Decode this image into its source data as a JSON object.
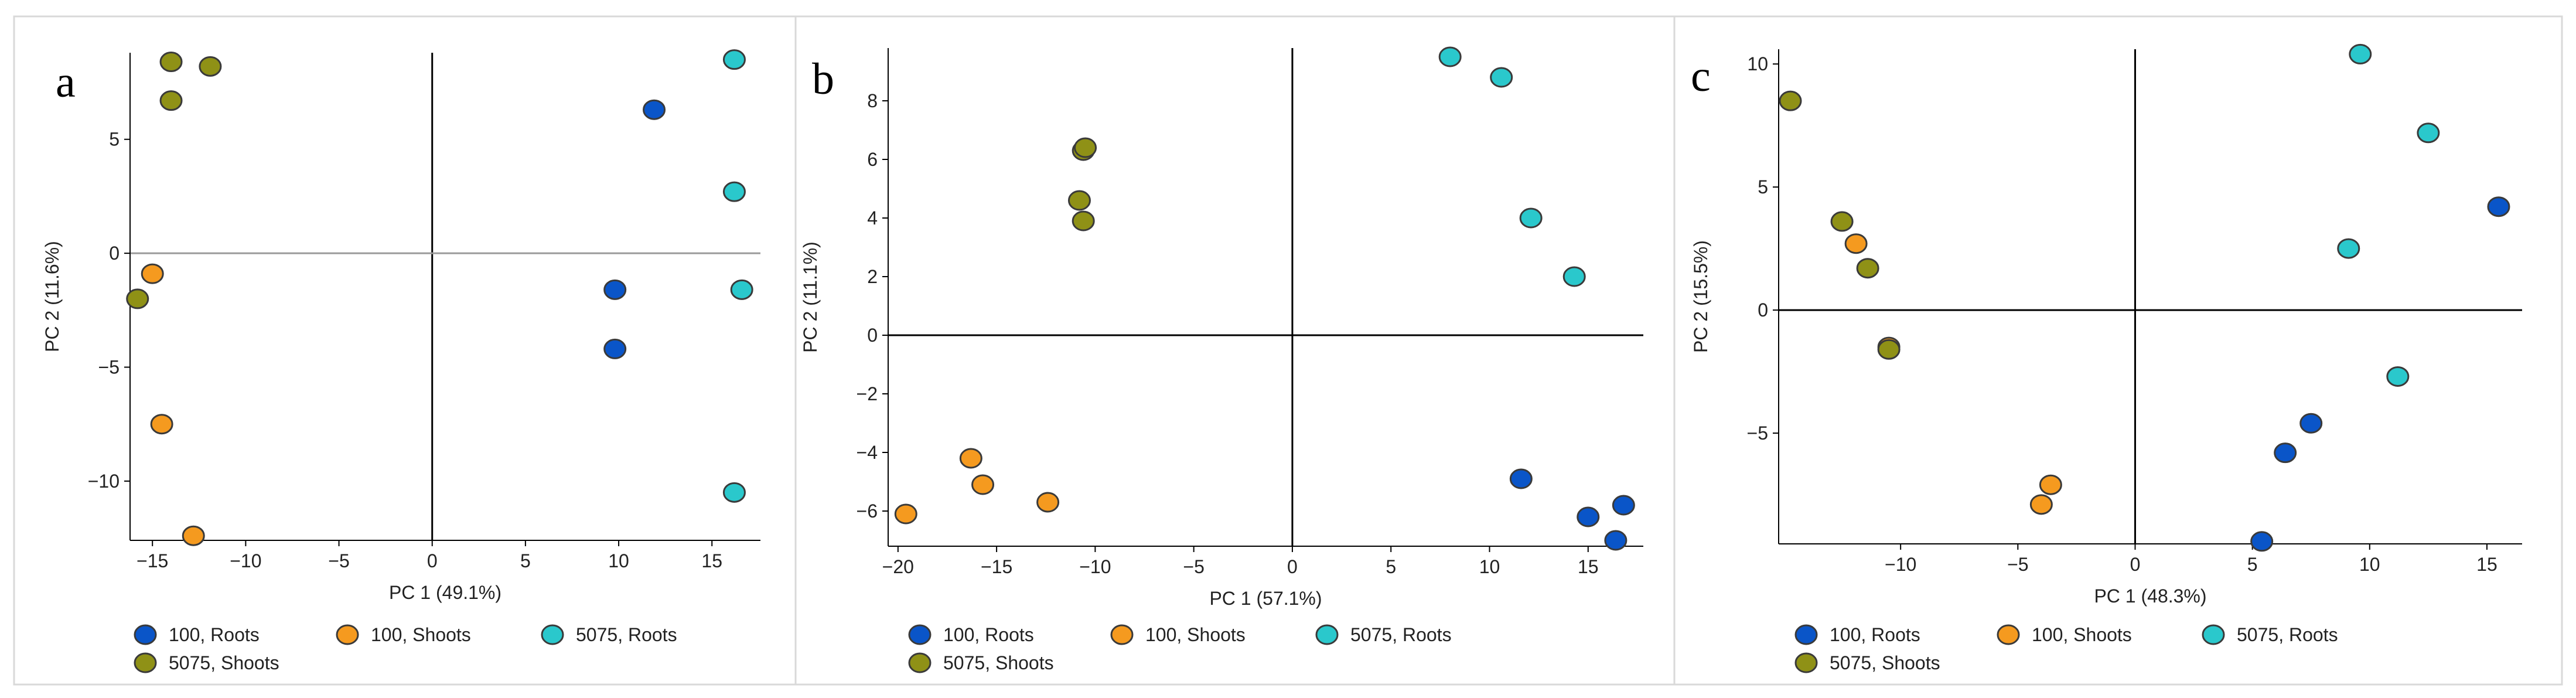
{
  "colors": {
    "100, Roots": "#0a55c8",
    "100, Shoots": "#f59a1f",
    "5075, Roots": "#2ac8cc",
    "5075, Shoots": "#8f9116"
  },
  "legend_entries": [
    "100, Roots",
    "100, Shoots",
    "5075, Roots",
    "5075, Shoots"
  ],
  "chart_data": [
    {
      "type": "scatter",
      "panel_label": "a",
      "xlabel": "PC 1 (49.1%)",
      "ylabel": "PC 2 (11.6%)",
      "xlim": [
        -16.2,
        17.6
      ],
      "ylim": [
        -12.6,
        8.8
      ],
      "xticks": [
        -15,
        -10,
        -5,
        0,
        5,
        10,
        15
      ],
      "yticks": [
        5,
        0,
        -5,
        -10
      ],
      "zero_line_y": "gray",
      "series": [
        {
          "name": "100, Roots",
          "points": [
            [
              11.9,
              6.3
            ],
            [
              9.8,
              -1.6
            ],
            [
              9.8,
              -4.2
            ]
          ]
        },
        {
          "name": "100, Shoots",
          "points": [
            [
              -15.0,
              -0.9
            ],
            [
              -14.5,
              -7.5
            ],
            [
              -12.8,
              -12.4
            ]
          ]
        },
        {
          "name": "5075, Roots",
          "points": [
            [
              16.2,
              8.5
            ],
            [
              16.2,
              2.7
            ],
            [
              16.6,
              -1.6
            ],
            [
              16.2,
              -10.5
            ]
          ]
        },
        {
          "name": "5075, Shoots",
          "points": [
            [
              -14.0,
              8.4
            ],
            [
              -11.9,
              8.2
            ],
            [
              -14.0,
              6.7
            ],
            [
              -15.8,
              -2.0
            ]
          ]
        }
      ]
    },
    {
      "type": "scatter",
      "panel_label": "b",
      "xlabel": "PC 1 (57.1%)",
      "ylabel": "PC 2 (11.1%)",
      "xlim": [
        -20.5,
        17.8
      ],
      "ylim": [
        -7.2,
        9.8
      ],
      "xticks": [
        -20,
        -15,
        -10,
        -5,
        0,
        5,
        10,
        15
      ],
      "yticks": [
        8,
        6,
        4,
        2,
        0,
        -2,
        -4,
        -6
      ],
      "zero_line_y": "black",
      "series": [
        {
          "name": "100, Roots",
          "points": [
            [
              11.6,
              -4.9
            ],
            [
              15.0,
              -6.2
            ],
            [
              16.8,
              -5.8
            ],
            [
              16.4,
              -7.0
            ]
          ]
        },
        {
          "name": "100, Shoots",
          "points": [
            [
              -16.3,
              -4.2
            ],
            [
              -15.7,
              -5.1
            ],
            [
              -12.4,
              -5.7
            ],
            [
              -19.6,
              -6.1
            ]
          ]
        },
        {
          "name": "5075, Roots",
          "points": [
            [
              8.0,
              9.5
            ],
            [
              10.6,
              8.8
            ],
            [
              12.1,
              4.0
            ],
            [
              14.3,
              2.0
            ]
          ]
        },
        {
          "name": "5075, Shoots",
          "points": [
            [
              -10.6,
              6.3
            ],
            [
              -10.5,
              6.4
            ],
            [
              -10.8,
              4.6
            ],
            [
              -10.6,
              3.9
            ]
          ]
        }
      ]
    },
    {
      "type": "scatter",
      "panel_label": "c",
      "xlabel": "PC 1 (48.3%)",
      "ylabel": "PC 2 (15.5%)",
      "xlim": [
        -15.2,
        16.5
      ],
      "ylim": [
        -9.5,
        10.6
      ],
      "xticks": [
        -10,
        -5,
        0,
        5,
        10,
        15
      ],
      "yticks": [
        10,
        5,
        0,
        -5
      ],
      "zero_line_y": "black",
      "series": [
        {
          "name": "100, Roots",
          "points": [
            [
              15.5,
              4.2
            ],
            [
              7.5,
              -4.6
            ],
            [
              6.4,
              -5.8
            ],
            [
              5.4,
              -9.4
            ]
          ]
        },
        {
          "name": "100, Shoots",
          "points": [
            [
              -11.9,
              2.7
            ],
            [
              -10.5,
              -1.5
            ],
            [
              -3.6,
              -7.1
            ],
            [
              -4.0,
              -7.9
            ]
          ]
        },
        {
          "name": "5075, Roots",
          "points": [
            [
              9.6,
              10.4
            ],
            [
              12.5,
              7.2
            ],
            [
              9.1,
              2.5
            ],
            [
              11.2,
              -2.7
            ]
          ]
        },
        {
          "name": "5075, Shoots",
          "points": [
            [
              -14.7,
              8.5
            ],
            [
              -12.5,
              3.6
            ],
            [
              -11.4,
              1.7
            ],
            [
              -10.5,
              -1.6
            ]
          ]
        }
      ]
    }
  ]
}
